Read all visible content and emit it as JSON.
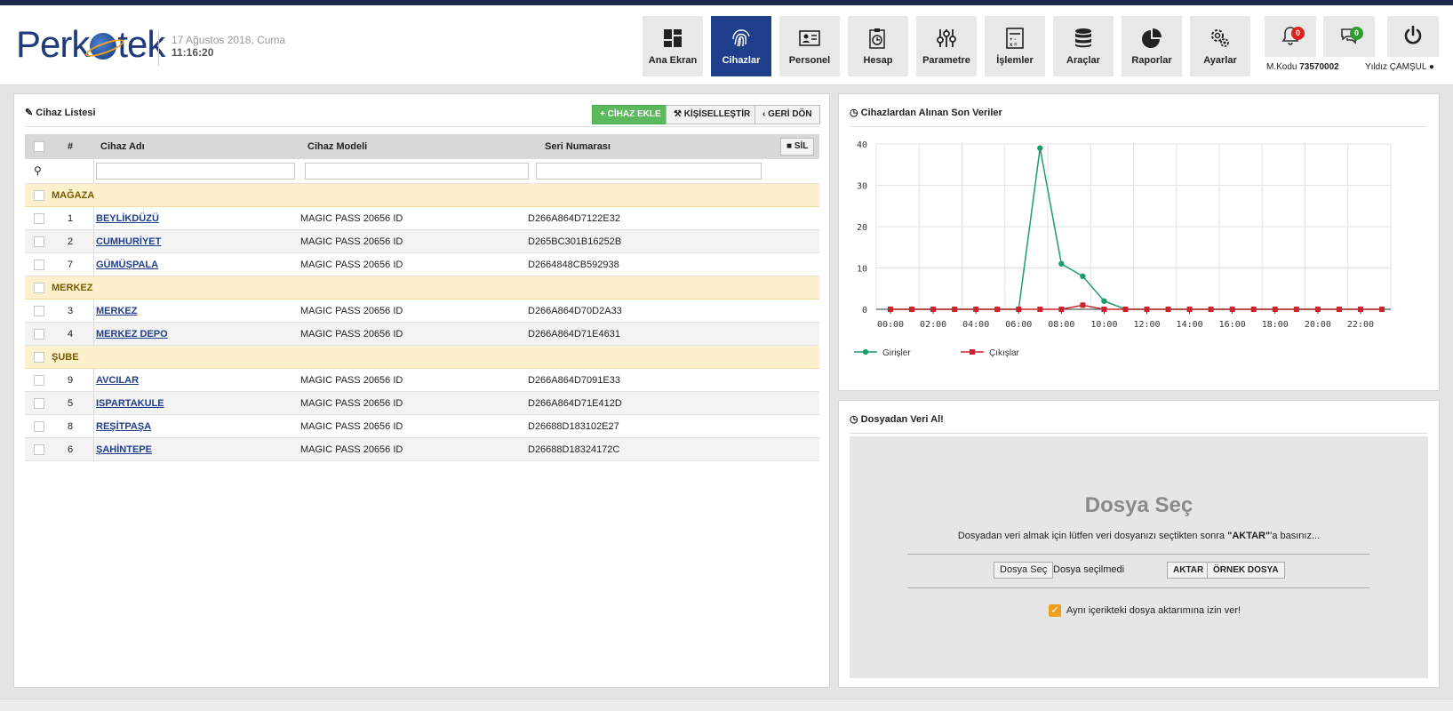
{
  "brand": {
    "logo_text_left": "Perk",
    "logo_text_right": "tek"
  },
  "datetime": {
    "date": "17 Ağustos 2018, Cuma",
    "time": "11:16:20"
  },
  "nav": [
    {
      "label": "Ana Ekran",
      "icon": "dashboard-icon",
      "active": false
    },
    {
      "label": "Cihazlar",
      "icon": "fingerprint-icon",
      "active": true
    },
    {
      "label": "Personel",
      "icon": "id-card-icon",
      "active": false
    },
    {
      "label": "Hesap",
      "icon": "clipboard-clock-icon",
      "active": false
    },
    {
      "label": "Parametre",
      "icon": "sliders-icon",
      "active": false
    },
    {
      "label": "İşlemler",
      "icon": "calculator-icon",
      "active": false
    },
    {
      "label": "Araçlar",
      "icon": "database-icon",
      "active": false
    },
    {
      "label": "Raporlar",
      "icon": "pie-chart-icon",
      "active": false
    },
    {
      "label": "Ayarlar",
      "icon": "gears-icon",
      "active": false
    }
  ],
  "notifications": {
    "bell_count": "0",
    "messages_count": "0",
    "bell_color": "#d9231c",
    "messages_color": "#2e9c2e"
  },
  "user": {
    "code_label": "M.Kodu",
    "code_value": "73570002",
    "name": "Yıldız ÇAMŞUL"
  },
  "device_list": {
    "title": "Cihaz Listesi",
    "add_button": "CİHAZ EKLE",
    "customize_button": "KİŞİSELLEŞTİR",
    "back_button": "GERİ DÖN",
    "delete_button": "SİL",
    "columns": {
      "num": "#",
      "name": "Cihaz Adı",
      "model": "Cihaz Modeli",
      "serial": "Seri Numarası"
    },
    "rows": [
      {
        "type": "group",
        "label": "MAĞAZA"
      },
      {
        "type": "item",
        "num": "1",
        "name": "BEYLİKDÜZÜ",
        "model": "MAGIC PASS 20656 ID",
        "serial": "D266A864D7122E32"
      },
      {
        "type": "item",
        "num": "2",
        "name": "CUMHURİYET",
        "model": "MAGIC PASS 20656 ID",
        "serial": "D265BC301B16252B"
      },
      {
        "type": "item",
        "num": "7",
        "name": "GÜMÜŞPALA",
        "model": "MAGIC PASS 20656 ID",
        "serial": "D2664848CB592938"
      },
      {
        "type": "group",
        "label": "MERKEZ"
      },
      {
        "type": "item",
        "num": "3",
        "name": "MERKEZ",
        "model": "MAGIC PASS 20656 ID",
        "serial": "D266A864D70D2A33"
      },
      {
        "type": "item",
        "num": "4",
        "name": "MERKEZ DEPO",
        "model": "MAGIC PASS 20656 ID",
        "serial": "D266A864D71E4631"
      },
      {
        "type": "group",
        "label": "ŞUBE"
      },
      {
        "type": "item",
        "num": "9",
        "name": "AVCILAR",
        "model": "MAGIC PASS 20656 ID",
        "serial": "D266A864D7091E33"
      },
      {
        "type": "item",
        "num": "5",
        "name": "ISPARTAKULE",
        "model": "MAGIC PASS 20656 ID",
        "serial": "D266A864D71E412D"
      },
      {
        "type": "item",
        "num": "8",
        "name": "REŞİTPAŞA",
        "model": "MAGIC PASS 20656 ID",
        "serial": "D26688D183102E27"
      },
      {
        "type": "item",
        "num": "6",
        "name": "ŞAHİNTEPE",
        "model": "MAGIC PASS 20656 ID",
        "serial": "D26688D18324172C"
      }
    ]
  },
  "chart_panel": {
    "title": "Cihazlardan Alınan Son Veriler"
  },
  "chart_data": {
    "type": "line",
    "x": [
      "00:00",
      "01:00",
      "02:00",
      "03:00",
      "04:00",
      "05:00",
      "06:00",
      "07:00",
      "08:00",
      "09:00",
      "10:00",
      "11:00",
      "12:00",
      "13:00",
      "14:00",
      "15:00",
      "16:00",
      "17:00",
      "18:00",
      "19:00",
      "20:00",
      "21:00",
      "22:00",
      "23:00"
    ],
    "xticks": [
      "00:00",
      "02:00",
      "04:00",
      "06:00",
      "08:00",
      "10:00",
      "12:00",
      "14:00",
      "16:00",
      "18:00",
      "20:00",
      "22:00"
    ],
    "ylim": [
      0,
      40
    ],
    "yticks": [
      "0",
      "10",
      "20",
      "30",
      "40"
    ],
    "grid": true,
    "legend": "bottom-left",
    "series": [
      {
        "name": "Girişler",
        "color": "#1f9b6a",
        "values": [
          0,
          0,
          0,
          0,
          0,
          0,
          0,
          39,
          11,
          8,
          2,
          0,
          0,
          0,
          0,
          0,
          0,
          0,
          0,
          0,
          0,
          0,
          0,
          0
        ]
      },
      {
        "name": "Çıkışlar",
        "color": "#c8262c",
        "values": [
          0,
          0,
          0,
          0,
          0,
          0,
          0,
          0,
          0,
          1,
          0,
          0,
          0,
          0,
          0,
          0,
          0,
          0,
          0,
          0,
          0,
          0,
          0,
          0
        ]
      }
    ]
  },
  "file_panel": {
    "title": "Dosyadan Veri Al!",
    "heading": "Dosya Seç",
    "instruction_pre": "Dosyadan veri almak için lütfen veri dosyanızı seçtikten sonra ",
    "instruction_bold": "\"AKTAR\"",
    "instruction_post": "'a basınız...",
    "choose_button": "Dosya Seç",
    "no_file": "Dosya seçilmedi",
    "transfer_button": "AKTAR",
    "sample_button": "ÖRNEK DOSYA",
    "allow_label": "Aynı içerikteki dosya aktarımına izin ver!"
  }
}
